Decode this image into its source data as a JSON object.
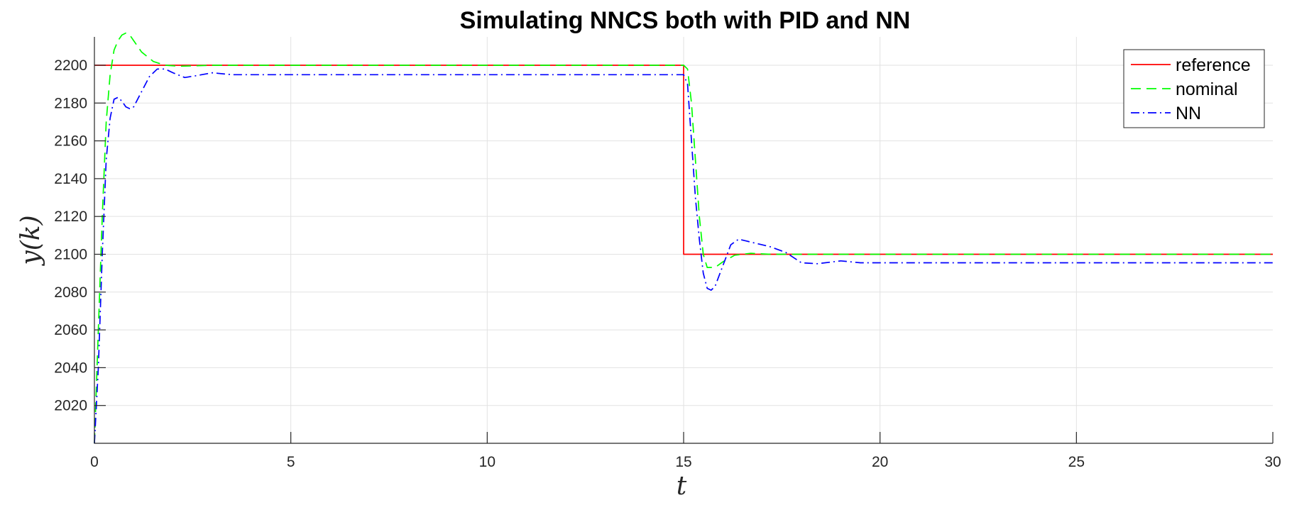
{
  "chart_data": {
    "type": "line",
    "title": "Simulating NNCS both with PID and NN",
    "xlabel": "t",
    "ylabel": "y(k)",
    "xlim": [
      0,
      30
    ],
    "ylim": [
      2000,
      2215
    ],
    "xticks": [
      0,
      5,
      10,
      15,
      20,
      25,
      30
    ],
    "yticks": [
      2020,
      2040,
      2060,
      2080,
      2100,
      2120,
      2140,
      2160,
      2180,
      2200
    ],
    "grid": true,
    "legend_position": "top-right",
    "series": [
      {
        "name": "reference",
        "color": "#ff0000",
        "style": "solid",
        "points": [
          [
            0,
            2200
          ],
          [
            15,
            2200
          ],
          [
            15,
            2100
          ],
          [
            30,
            2100
          ]
        ]
      },
      {
        "name": "nominal",
        "color": "#00ff00",
        "style": "dashed",
        "points": [
          [
            0,
            2000
          ],
          [
            0.1,
            2060
          ],
          [
            0.2,
            2120
          ],
          [
            0.3,
            2170
          ],
          [
            0.4,
            2195
          ],
          [
            0.5,
            2208
          ],
          [
            0.6,
            2213
          ],
          [
            0.7,
            2216
          ],
          [
            0.8,
            2217
          ],
          [
            0.9,
            2216
          ],
          [
            1.0,
            2213
          ],
          [
            1.2,
            2207
          ],
          [
            1.5,
            2202
          ],
          [
            1.8,
            2200
          ],
          [
            2.2,
            2199.5
          ],
          [
            3,
            2200
          ],
          [
            15,
            2200
          ],
          [
            15.1,
            2198
          ],
          [
            15.2,
            2180
          ],
          [
            15.3,
            2150
          ],
          [
            15.4,
            2120
          ],
          [
            15.5,
            2100
          ],
          [
            15.6,
            2093
          ],
          [
            15.8,
            2093
          ],
          [
            16.0,
            2096
          ],
          [
            16.3,
            2099.5
          ],
          [
            16.7,
            2100.5
          ],
          [
            17.2,
            2100
          ],
          [
            30,
            2100
          ]
        ]
      },
      {
        "name": "NN",
        "color": "#0000ff",
        "style": "dashdot",
        "points": [
          [
            0,
            2000
          ],
          [
            0.1,
            2040
          ],
          [
            0.2,
            2100
          ],
          [
            0.3,
            2150
          ],
          [
            0.4,
            2172
          ],
          [
            0.5,
            2182
          ],
          [
            0.6,
            2183
          ],
          [
            0.7,
            2181
          ],
          [
            0.8,
            2178
          ],
          [
            0.9,
            2177
          ],
          [
            1.0,
            2178
          ],
          [
            1.2,
            2186
          ],
          [
            1.4,
            2194
          ],
          [
            1.6,
            2198
          ],
          [
            1.8,
            2198
          ],
          [
            2.0,
            2196
          ],
          [
            2.3,
            2193.5
          ],
          [
            2.6,
            2194.5
          ],
          [
            3.0,
            2196
          ],
          [
            3.5,
            2195
          ],
          [
            4.0,
            2195
          ],
          [
            15,
            2195
          ],
          [
            15.1,
            2190
          ],
          [
            15.2,
            2160
          ],
          [
            15.3,
            2130
          ],
          [
            15.4,
            2108
          ],
          [
            15.5,
            2090
          ],
          [
            15.6,
            2082
          ],
          [
            15.7,
            2081
          ],
          [
            15.8,
            2083
          ],
          [
            16.0,
            2094
          ],
          [
            16.2,
            2105
          ],
          [
            16.4,
            2108
          ],
          [
            16.6,
            2107
          ],
          [
            16.8,
            2106
          ],
          [
            17.2,
            2104
          ],
          [
            17.6,
            2101
          ],
          [
            18.0,
            2095.5
          ],
          [
            18.4,
            2095
          ],
          [
            19.0,
            2096.5
          ],
          [
            19.5,
            2095.5
          ],
          [
            20,
            2095.5
          ],
          [
            30,
            2095.5
          ]
        ]
      }
    ]
  }
}
